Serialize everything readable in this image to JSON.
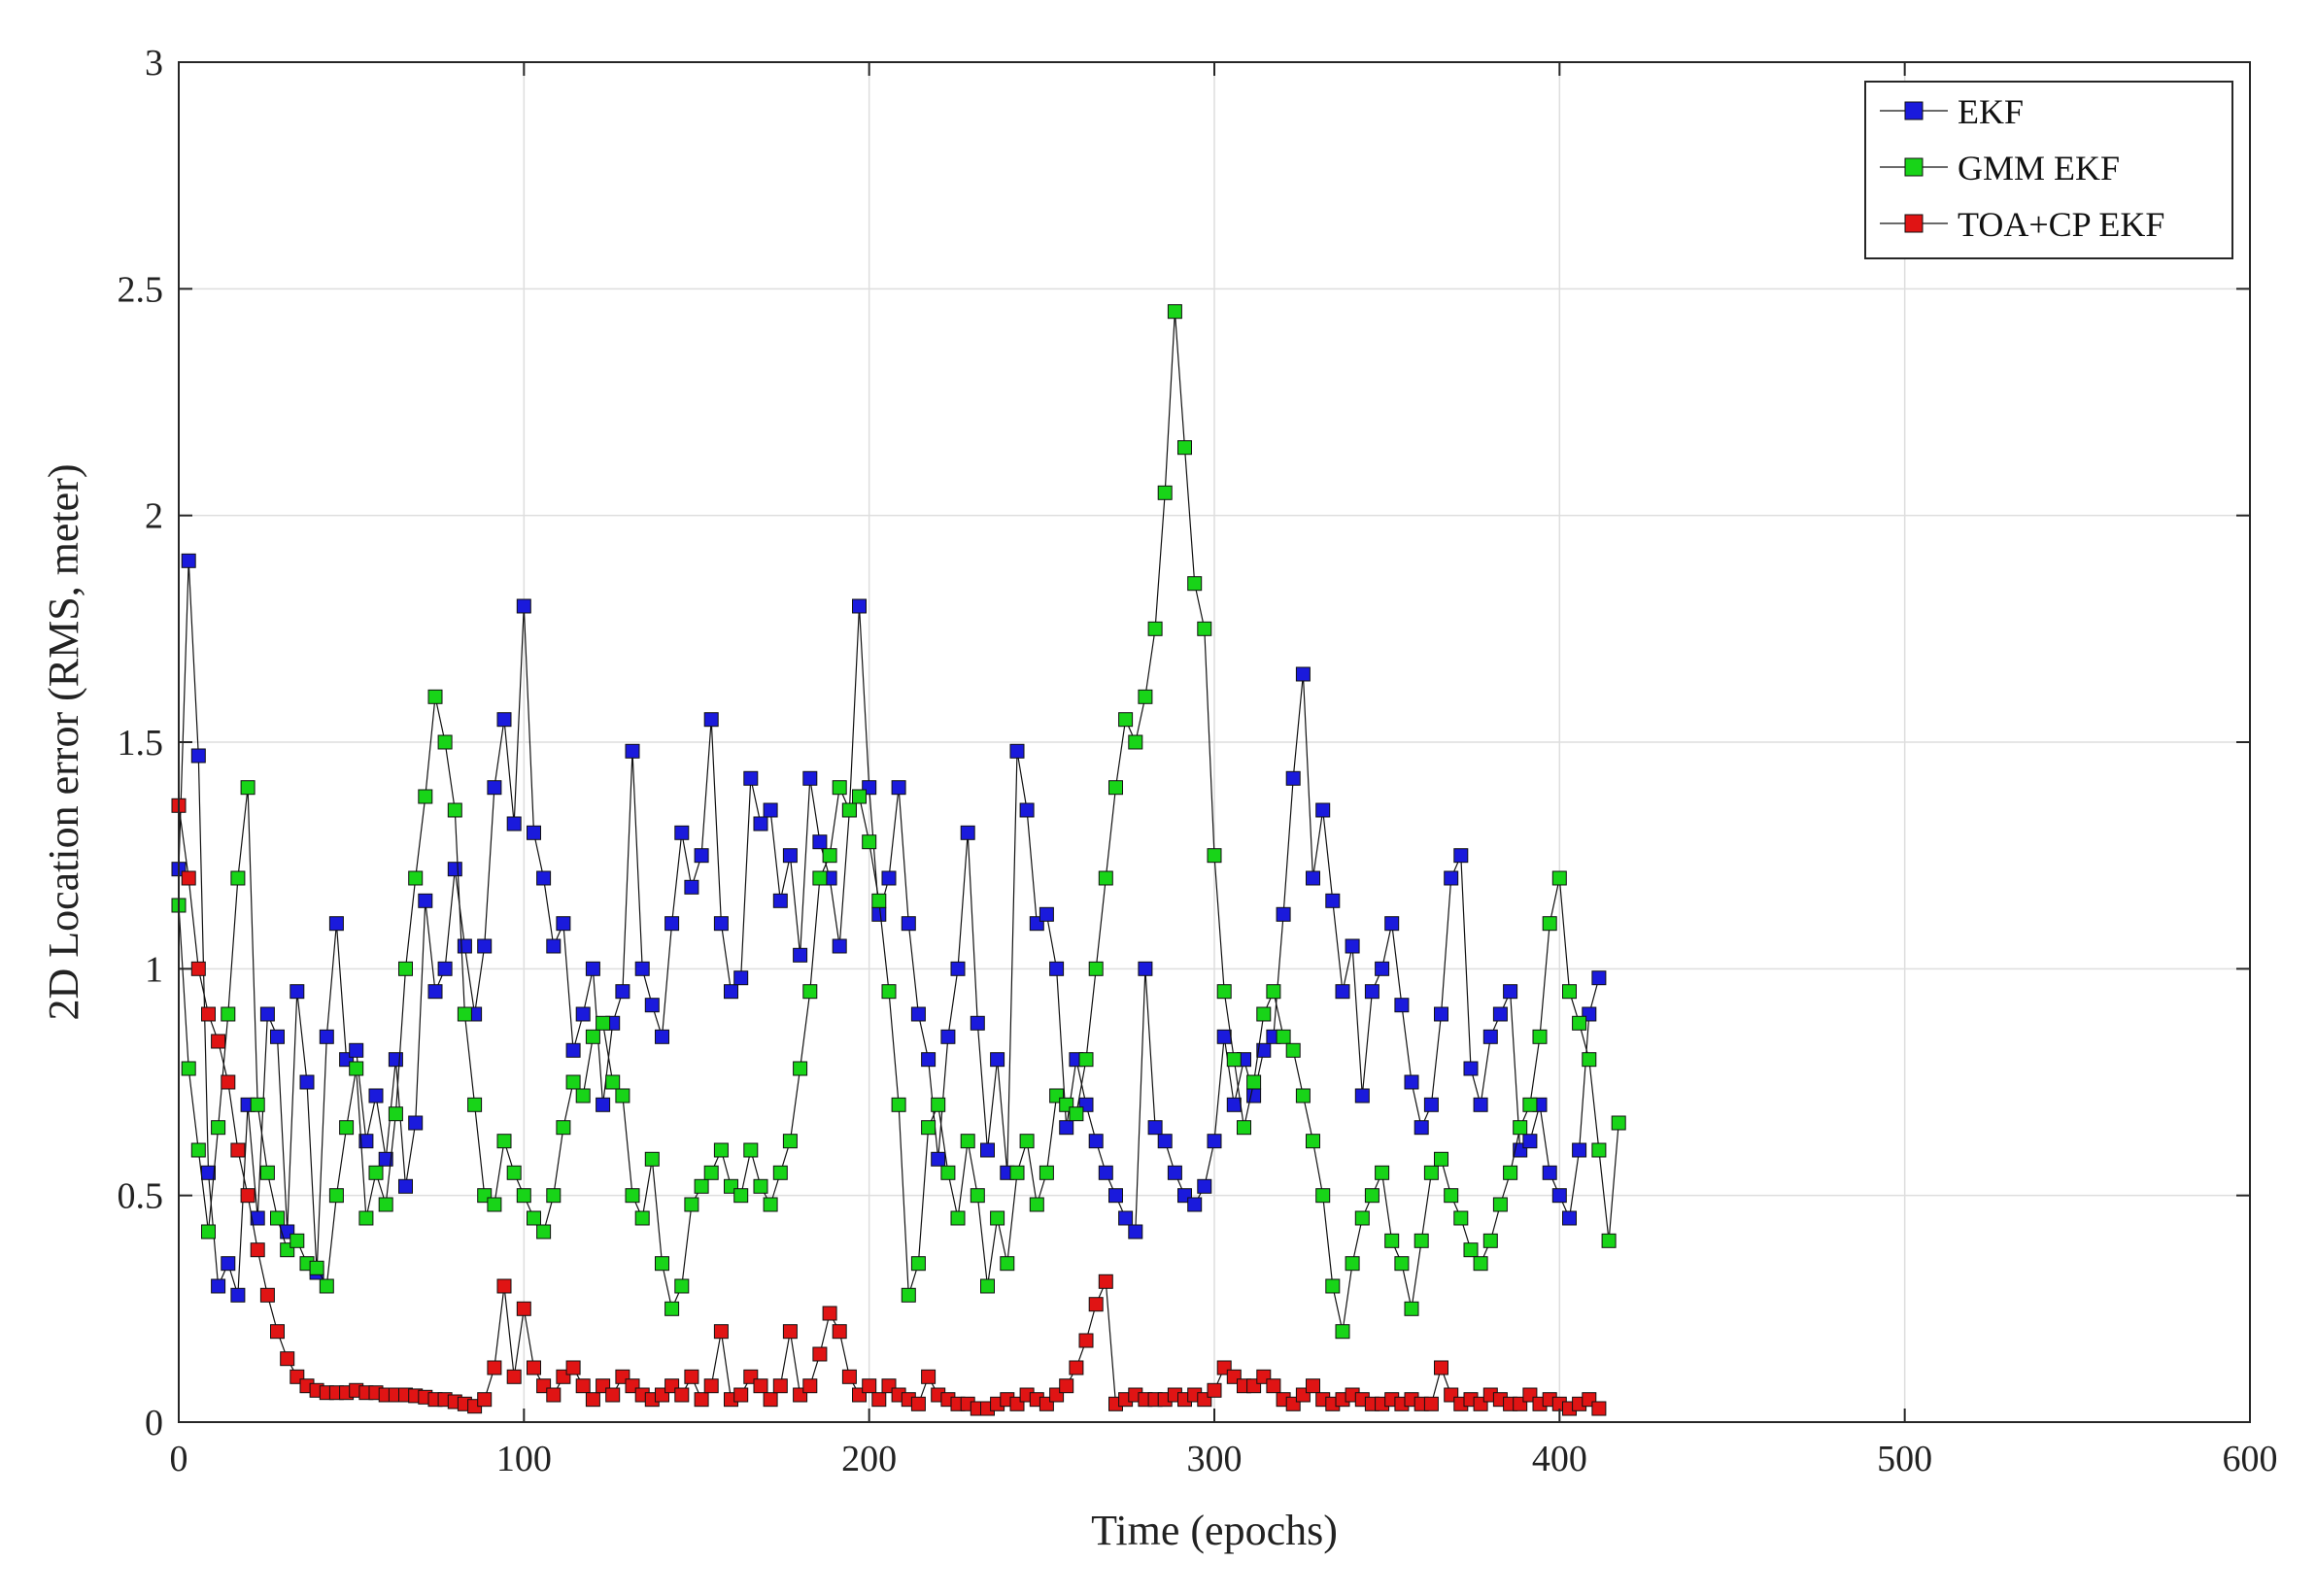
{
  "chart_data": {
    "type": "line",
    "title": "",
    "xlabel": "Time (epochs)",
    "ylabel": "2D Location error (RMS, meter)",
    "xlim": [
      0,
      600
    ],
    "ylim": [
      0,
      3
    ],
    "xticks": [
      0,
      100,
      200,
      300,
      400,
      500,
      600
    ],
    "yticks": [
      0,
      0.5,
      1,
      1.5,
      2,
      2.5,
      3
    ],
    "xtick_labels": [
      "0",
      "100",
      "200",
      "300",
      "400",
      "500",
      "600"
    ],
    "ytick_labels": [
      "0",
      "0.5",
      "1",
      "1.5",
      "2",
      "2.5",
      "3"
    ],
    "grid": true,
    "legend_position": "top-right",
    "marker": "square",
    "step": 10,
    "series": [
      {
        "name": "EKF",
        "color": "#1a1adc",
        "x_start": 0,
        "values": [
          1.22,
          1.9,
          1.47,
          0.55,
          0.3,
          0.35,
          0.28,
          0.7,
          0.45,
          0.9,
          0.85,
          0.42,
          0.95,
          0.75,
          0.33,
          0.85,
          1.1,
          0.8,
          0.82,
          0.62,
          0.72,
          0.58,
          0.8,
          0.52,
          0.66,
          1.15,
          0.95,
          1.0,
          1.22,
          1.05,
          0.9,
          1.05,
          1.4,
          1.55,
          1.32,
          1.8,
          1.3,
          1.2,
          1.05,
          1.1,
          0.82,
          0.9,
          1.0,
          0.7,
          0.88,
          0.95,
          1.48,
          1.0,
          0.92,
          0.85,
          1.1,
          1.3,
          1.18,
          1.25,
          1.55,
          1.1,
          0.95,
          0.98,
          1.42,
          1.32,
          1.35,
          1.15,
          1.25,
          1.03,
          1.42,
          1.28,
          1.2,
          1.05,
          1.35,
          1.8,
          1.4,
          1.12,
          1.2,
          1.4,
          1.1,
          0.9,
          0.8,
          0.58,
          0.85,
          1.0,
          1.3,
          0.88,
          0.6,
          0.8,
          0.55,
          1.48,
          1.35,
          1.1,
          1.12,
          1.0,
          0.65,
          0.8,
          0.7,
          0.62,
          0.55,
          0.5,
          0.45,
          0.42,
          1.0,
          0.65,
          0.62,
          0.55,
          0.5,
          0.48,
          0.52,
          0.62,
          0.85,
          0.7,
          0.8,
          0.72,
          0.82,
          0.85,
          1.12,
          1.42,
          1.65,
          1.2,
          1.35,
          1.15,
          0.95,
          1.05,
          0.72,
          0.95,
          1.0,
          1.1,
          0.92,
          0.75,
          0.65,
          0.7,
          0.9,
          1.2,
          1.25,
          0.78,
          0.7,
          0.85,
          0.9,
          0.95,
          0.6,
          0.62,
          0.7,
          0.55,
          0.5,
          0.45,
          0.6,
          0.9,
          0.98
        ]
      },
      {
        "name": "GMM EKF",
        "color": "#18d418",
        "x_start": 0,
        "values": [
          1.14,
          0.78,
          0.6,
          0.42,
          0.65,
          0.9,
          1.2,
          1.4,
          0.7,
          0.55,
          0.45,
          0.38,
          0.4,
          0.35,
          0.34,
          0.3,
          0.5,
          0.65,
          0.78,
          0.45,
          0.55,
          0.48,
          0.68,
          1.0,
          1.2,
          1.38,
          1.6,
          1.5,
          1.35,
          0.9,
          0.7,
          0.5,
          0.48,
          0.62,
          0.55,
          0.5,
          0.45,
          0.42,
          0.5,
          0.65,
          0.75,
          0.72,
          0.85,
          0.88,
          0.75,
          0.72,
          0.5,
          0.45,
          0.58,
          0.35,
          0.25,
          0.3,
          0.48,
          0.52,
          0.55,
          0.6,
          0.52,
          0.5,
          0.6,
          0.52,
          0.48,
          0.55,
          0.62,
          0.78,
          0.95,
          1.2,
          1.25,
          1.4,
          1.35,
          1.38,
          1.28,
          1.15,
          0.95,
          0.7,
          0.28,
          0.35,
          0.65,
          0.7,
          0.55,
          0.45,
          0.62,
          0.5,
          0.3,
          0.45,
          0.35,
          0.55,
          0.62,
          0.48,
          0.55,
          0.72,
          0.7,
          0.68,
          0.8,
          1.0,
          1.2,
          1.4,
          1.55,
          1.5,
          1.6,
          1.75,
          2.05,
          2.45,
          2.15,
          1.85,
          1.75,
          1.25,
          0.95,
          0.8,
          0.65,
          0.75,
          0.9,
          0.95,
          0.85,
          0.82,
          0.72,
          0.62,
          0.5,
          0.3,
          0.2,
          0.35,
          0.45,
          0.5,
          0.55,
          0.4,
          0.35,
          0.25,
          0.4,
          0.55,
          0.58,
          0.5,
          0.45,
          0.38,
          0.35,
          0.4,
          0.48,
          0.55,
          0.65,
          0.7,
          0.85,
          1.1,
          1.2,
          0.95,
          0.88,
          0.8,
          0.6,
          0.4,
          0.66
        ]
      },
      {
        "name": "TOA+CP EKF",
        "color": "#e01414",
        "x_start": 0,
        "values": [
          1.36,
          1.2,
          1.0,
          0.9,
          0.84,
          0.75,
          0.6,
          0.5,
          0.38,
          0.28,
          0.2,
          0.14,
          0.1,
          0.08,
          0.07,
          0.065,
          0.065,
          0.065,
          0.07,
          0.065,
          0.065,
          0.06,
          0.06,
          0.06,
          0.058,
          0.055,
          0.05,
          0.05,
          0.045,
          0.04,
          0.035,
          0.05,
          0.12,
          0.3,
          0.1,
          0.25,
          0.12,
          0.08,
          0.06,
          0.1,
          0.12,
          0.08,
          0.05,
          0.08,
          0.06,
          0.1,
          0.08,
          0.06,
          0.05,
          0.06,
          0.08,
          0.06,
          0.1,
          0.05,
          0.08,
          0.2,
          0.05,
          0.06,
          0.1,
          0.08,
          0.05,
          0.08,
          0.2,
          0.06,
          0.08,
          0.15,
          0.24,
          0.2,
          0.1,
          0.06,
          0.08,
          0.05,
          0.08,
          0.06,
          0.05,
          0.04,
          0.1,
          0.06,
          0.05,
          0.04,
          0.04,
          0.03,
          0.03,
          0.04,
          0.05,
          0.04,
          0.06,
          0.05,
          0.04,
          0.06,
          0.08,
          0.12,
          0.18,
          0.26,
          0.31,
          0.04,
          0.05,
          0.06,
          0.05,
          0.05,
          0.05,
          0.06,
          0.05,
          0.06,
          0.05,
          0.07,
          0.12,
          0.1,
          0.08,
          0.08,
          0.1,
          0.08,
          0.05,
          0.04,
          0.06,
          0.08,
          0.05,
          0.04,
          0.05,
          0.06,
          0.05,
          0.04,
          0.04,
          0.05,
          0.04,
          0.05,
          0.04,
          0.04,
          0.12,
          0.06,
          0.04,
          0.05,
          0.04,
          0.06,
          0.05,
          0.04,
          0.04,
          0.06,
          0.04,
          0.05,
          0.04,
          0.03,
          0.04,
          0.05,
          0.03
        ]
      }
    ]
  }
}
